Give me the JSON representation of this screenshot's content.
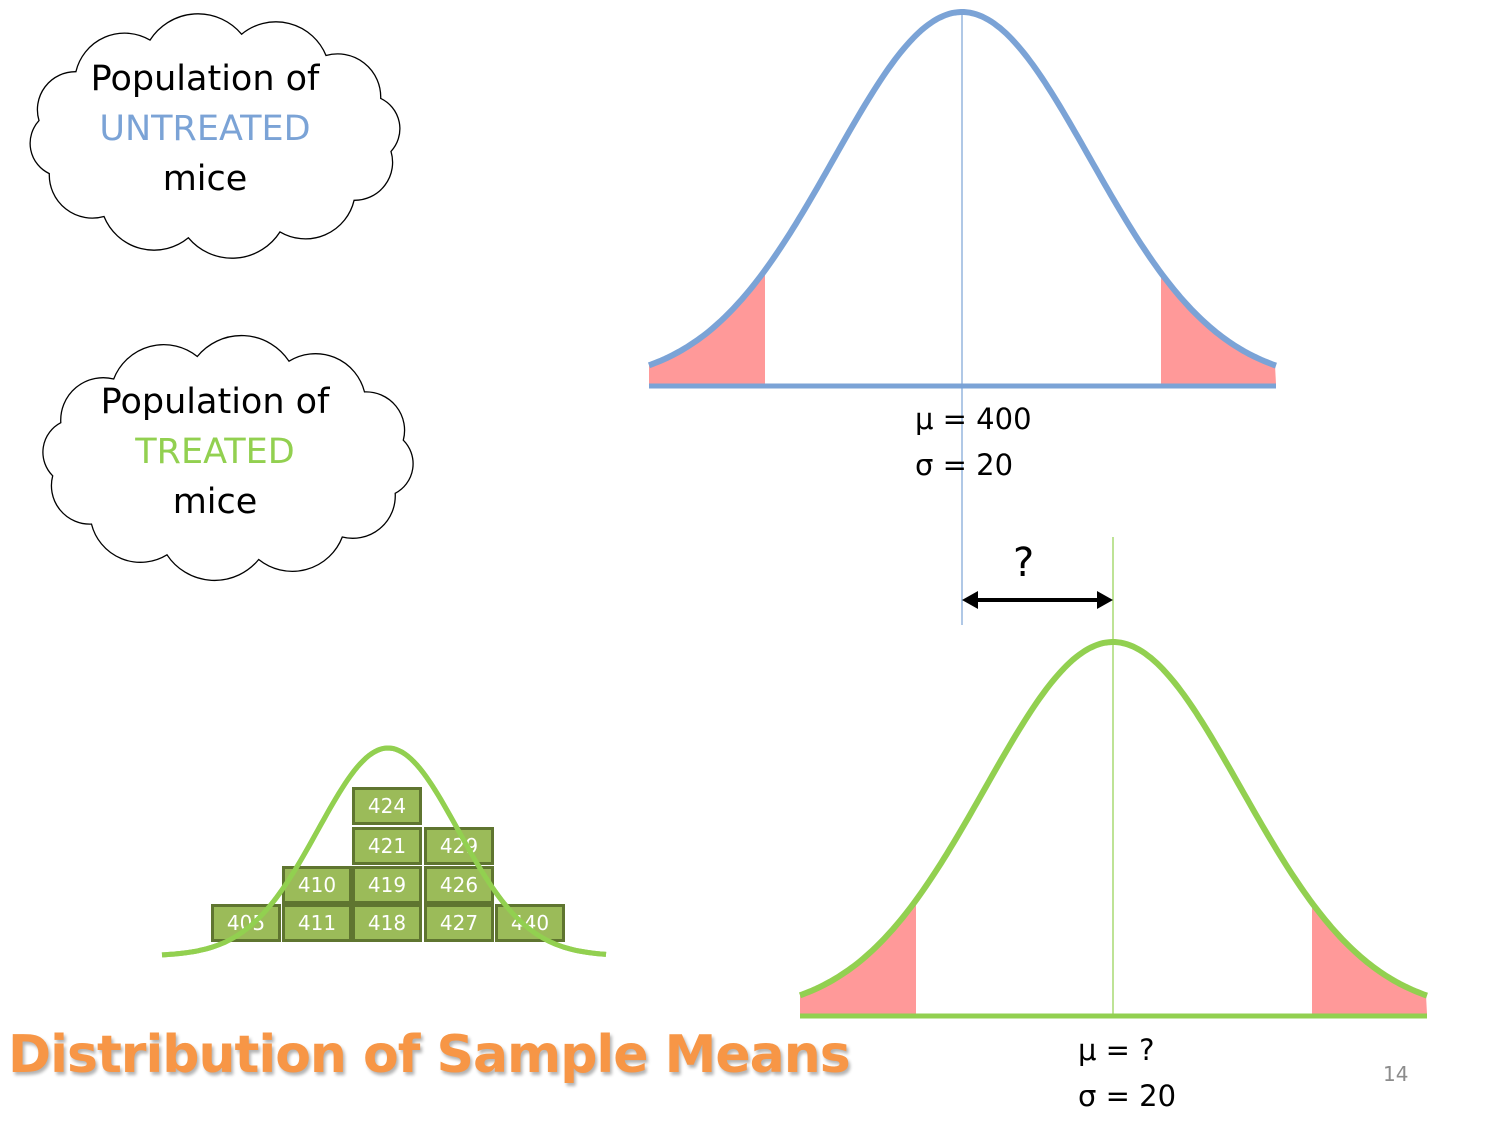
{
  "colors": {
    "untreated_blue": "#7ba3d6",
    "treated_green": "#92d050",
    "tail_fill": "#ff9999",
    "box_fill": "#9bbb59",
    "box_border": "#5f7530",
    "title_orange": "#f79646"
  },
  "clouds": {
    "untreated": {
      "line1": "Population of",
      "keyword": "UNTREATED",
      "line3": "mice"
    },
    "treated": {
      "line1": "Population of",
      "keyword": "TREATED",
      "line3": "mice"
    }
  },
  "untreated_stats": {
    "mu": "μ = 400",
    "sigma": "σ = 20"
  },
  "treated_stats": {
    "mu": "μ = ?",
    "sigma": "σ = 20"
  },
  "difference_label": "?",
  "sample_means": {
    "row4": [
      "424"
    ],
    "row3": [
      "421",
      "429"
    ],
    "row2": [
      "410",
      "419",
      "426"
    ],
    "row1": [
      "405",
      "411",
      "418",
      "427",
      "440"
    ]
  },
  "title": "Distribution of Sample Means",
  "slide_number": "14"
}
